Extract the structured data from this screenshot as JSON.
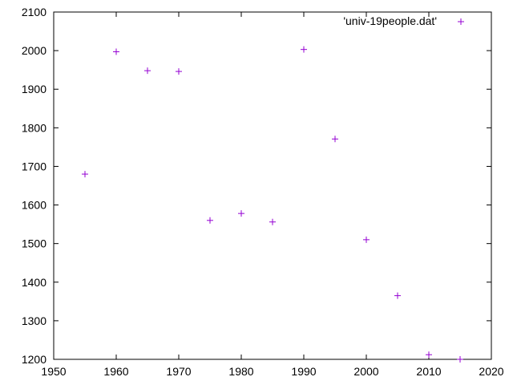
{
  "chart_data": {
    "type": "scatter",
    "title": "",
    "xlabel": "",
    "ylabel": "",
    "xlim": [
      1950,
      2020
    ],
    "ylim": [
      1200,
      2100
    ],
    "x_ticks": [
      1950,
      1960,
      1970,
      1980,
      1990,
      2000,
      2010,
      2020
    ],
    "y_ticks": [
      1200,
      1300,
      1400,
      1500,
      1600,
      1700,
      1800,
      1900,
      2000,
      2100
    ],
    "grid": false,
    "legend_position": "top-right",
    "marker_color": "#9400d3",
    "series": [
      {
        "name": "'univ-19people.dat'",
        "marker": "plus",
        "x": [
          1955,
          1960,
          1965,
          1970,
          1975,
          1980,
          1985,
          1990,
          1995,
          2000,
          2005,
          2010,
          2015
        ],
        "y": [
          1680,
          1997,
          1948,
          1946,
          1560,
          1578,
          1556,
          2003,
          1771,
          1510,
          1365,
          1212,
          1200
        ]
      }
    ]
  }
}
